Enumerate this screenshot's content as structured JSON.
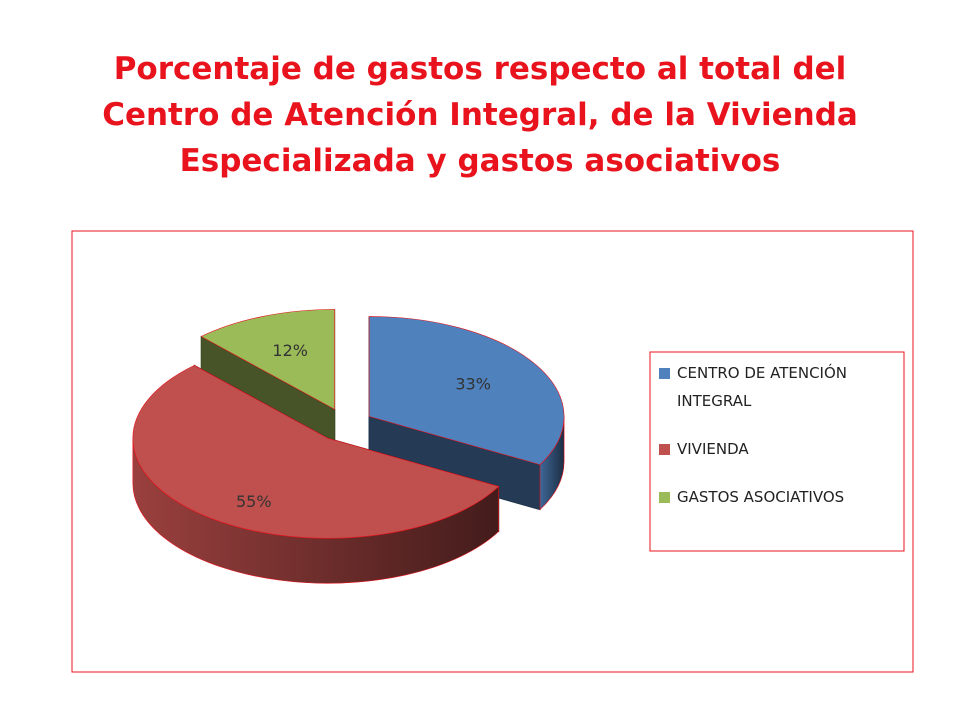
{
  "chart_data": {
    "type": "pie3d",
    "title": "Porcentaje de gastos respecto al total del Centro de Atención Integral, de la Vivienda Especializada y gastos asociativos",
    "categories": [
      "CENTRO DE ATENCIÓN INTEGRAL",
      "VIVIENDA",
      "GASTOS ASOCIATIVOS"
    ],
    "values": [
      33,
      55,
      12
    ],
    "value_labels": [
      "33%",
      "55%",
      "12%"
    ],
    "colors": [
      "#4f81bd",
      "#c0504d",
      "#9bbb59"
    ],
    "legend": "right"
  }
}
